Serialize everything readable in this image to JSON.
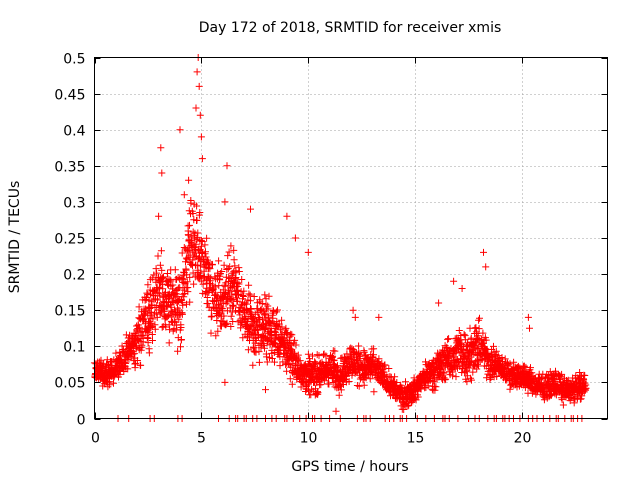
{
  "chart_data": {
    "type": "scatter",
    "title": "Day 172 of 2018, SRMTID for receiver xmis",
    "xlabel": "GPS time / hours",
    "ylabel": "SRMTID / TECUs",
    "xlim": [
      0,
      24
    ],
    "ylim": [
      0,
      0.5
    ],
    "x_ticks": [
      0,
      5,
      10,
      15,
      20
    ],
    "x_tick_labels": [
      "0",
      "5",
      "10",
      "15",
      "20"
    ],
    "y_ticks": [
      0,
      0.05,
      0.1,
      0.15,
      0.2,
      0.25,
      0.3,
      0.35,
      0.4,
      0.45,
      0.5
    ],
    "y_tick_labels": [
      "0",
      "0.05",
      "0.1",
      "0.15",
      "0.2",
      "0.25",
      "0.3",
      "0.35",
      "0.4",
      "0.45",
      "0.5"
    ],
    "grid": true,
    "marker": "+",
    "color": "#ff0000",
    "series": [
      {
        "name": "SRMTID",
        "envelope": {
          "description": "Typical SRMTID level per GPS hour, read from the plotted cloud of markers",
          "hours": [
            0.0,
            0.5,
            1.0,
            1.5,
            2.0,
            2.5,
            3.0,
            3.5,
            4.0,
            4.5,
            5.0,
            5.5,
            6.0,
            6.5,
            7.0,
            7.5,
            8.0,
            8.5,
            9.0,
            9.5,
            10.0,
            10.5,
            11.0,
            11.5,
            12.0,
            12.5,
            13.0,
            13.5,
            14.0,
            14.5,
            15.0,
            15.5,
            16.0,
            16.5,
            17.0,
            17.5,
            18.0,
            18.5,
            19.0,
            19.5,
            20.0,
            20.5,
            21.0,
            21.5,
            22.0,
            22.5,
            23.0
          ],
          "median": [
            0.07,
            0.06,
            0.07,
            0.09,
            0.11,
            0.14,
            0.18,
            0.16,
            0.15,
            0.24,
            0.22,
            0.18,
            0.16,
            0.19,
            0.14,
            0.12,
            0.13,
            0.11,
            0.1,
            0.07,
            0.06,
            0.06,
            0.07,
            0.06,
            0.08,
            0.07,
            0.07,
            0.06,
            0.04,
            0.03,
            0.04,
            0.06,
            0.07,
            0.08,
            0.09,
            0.09,
            0.1,
            0.08,
            0.07,
            0.06,
            0.06,
            0.05,
            0.04,
            0.05,
            0.04,
            0.04,
            0.05
          ],
          "spread": [
            0.02,
            0.02,
            0.02,
            0.03,
            0.04,
            0.05,
            0.06,
            0.06,
            0.06,
            0.07,
            0.07,
            0.06,
            0.06,
            0.06,
            0.05,
            0.05,
            0.05,
            0.05,
            0.04,
            0.03,
            0.03,
            0.03,
            0.03,
            0.03,
            0.03,
            0.03,
            0.03,
            0.02,
            0.02,
            0.02,
            0.02,
            0.02,
            0.03,
            0.03,
            0.04,
            0.04,
            0.04,
            0.03,
            0.02,
            0.02,
            0.02,
            0.02,
            0.02,
            0.02,
            0.02,
            0.02,
            0.02
          ]
        },
        "outliers": [
          {
            "x": 4.85,
            "y": 0.5
          },
          {
            "x": 4.8,
            "y": 0.48
          },
          {
            "x": 4.9,
            "y": 0.46
          },
          {
            "x": 4.75,
            "y": 0.43
          },
          {
            "x": 4.95,
            "y": 0.42
          },
          {
            "x": 4.0,
            "y": 0.4
          },
          {
            "x": 5.0,
            "y": 0.39
          },
          {
            "x": 3.1,
            "y": 0.375
          },
          {
            "x": 5.05,
            "y": 0.36
          },
          {
            "x": 3.15,
            "y": 0.34
          },
          {
            "x": 6.2,
            "y": 0.35
          },
          {
            "x": 4.2,
            "y": 0.31
          },
          {
            "x": 4.4,
            "y": 0.33
          },
          {
            "x": 6.1,
            "y": 0.3
          },
          {
            "x": 7.3,
            "y": 0.29
          },
          {
            "x": 9.0,
            "y": 0.28
          },
          {
            "x": 3.0,
            "y": 0.28
          },
          {
            "x": 9.4,
            "y": 0.25
          },
          {
            "x": 10.0,
            "y": 0.23
          },
          {
            "x": 18.2,
            "y": 0.23
          },
          {
            "x": 18.3,
            "y": 0.21
          },
          {
            "x": 17.2,
            "y": 0.18
          },
          {
            "x": 16.8,
            "y": 0.19
          },
          {
            "x": 12.1,
            "y": 0.15
          },
          {
            "x": 12.2,
            "y": 0.14
          },
          {
            "x": 13.3,
            "y": 0.14
          },
          {
            "x": 16.1,
            "y": 0.16
          },
          {
            "x": 20.3,
            "y": 0.14
          },
          {
            "x": 20.35,
            "y": 0.125
          },
          {
            "x": 6.1,
            "y": 0.05
          },
          {
            "x": 8.0,
            "y": 0.04
          },
          {
            "x": 11.3,
            "y": 0.01
          }
        ],
        "zero_hours": [
          1.1,
          1.6,
          2.6,
          2.8,
          3.9,
          4.1,
          5.8,
          6.3,
          6.6,
          6.7,
          7.0,
          7.1,
          7.4,
          7.6,
          8.0,
          8.3,
          8.5,
          8.9,
          9.0,
          9.3,
          9.6,
          9.9,
          10.2,
          10.3,
          10.6,
          11.0,
          11.5,
          12.3,
          12.6,
          12.7,
          12.9,
          13.6,
          13.8,
          14.0,
          14.3,
          14.4,
          14.6,
          15.1,
          15.5,
          15.9,
          16.3,
          16.4,
          16.6,
          17.0,
          17.5,
          17.8,
          18.0,
          18.4,
          18.7,
          18.8,
          19.1,
          19.2,
          19.4,
          19.6,
          19.9,
          20.3,
          20.5,
          20.7,
          21.0,
          21.3,
          21.6,
          21.7,
          22.0,
          22.3,
          22.4,
          22.6,
          22.8
        ]
      }
    ]
  }
}
